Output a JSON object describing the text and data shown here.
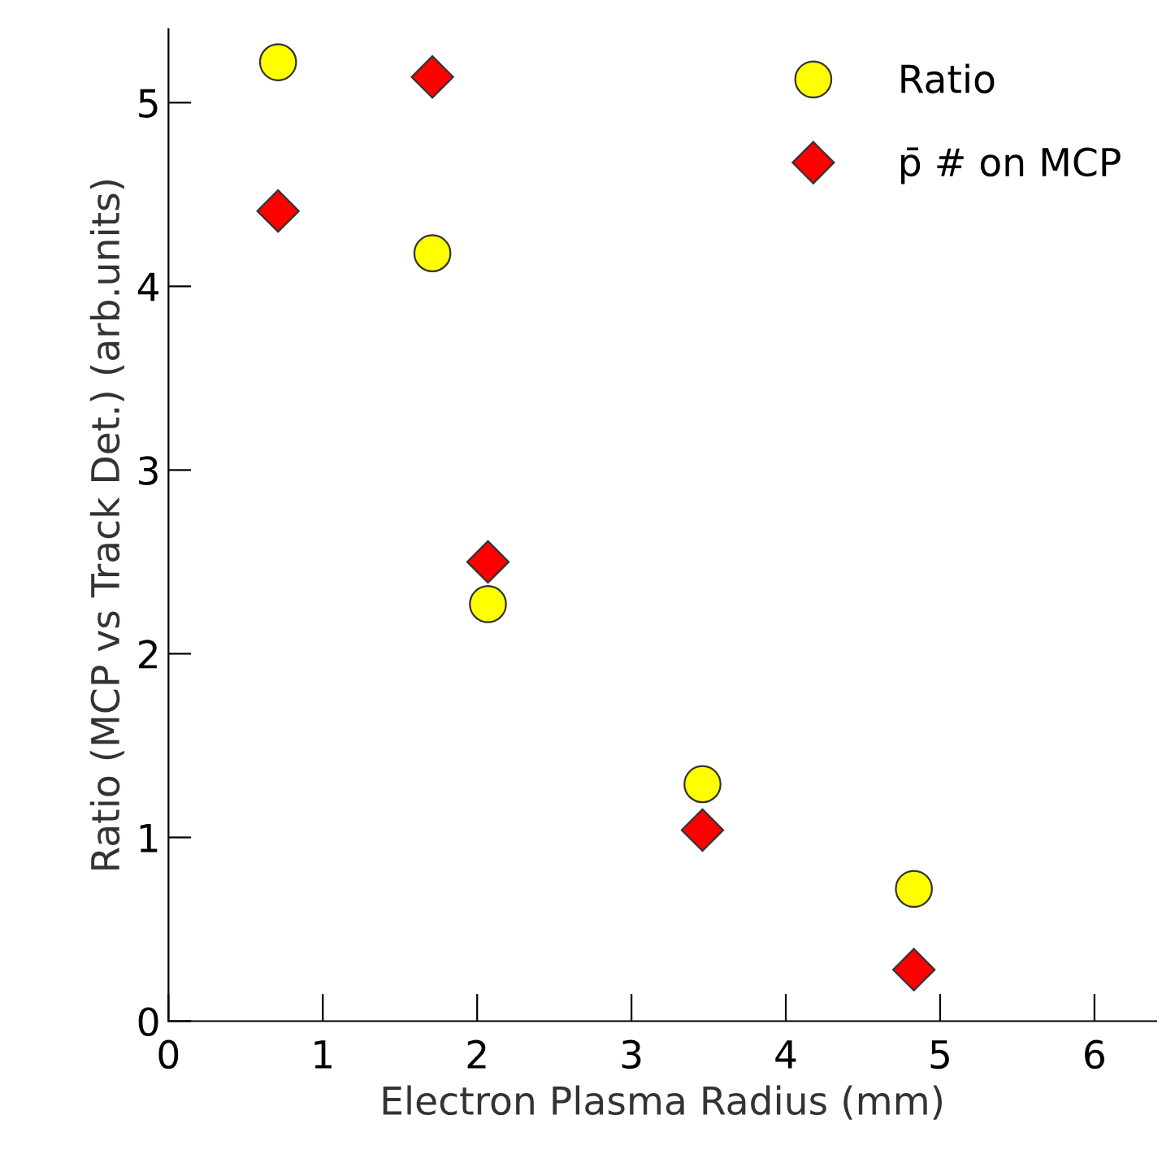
{
  "chart_data": {
    "type": "scatter",
    "xlabel": "Electron Plasma Radius (mm)",
    "ylabel": "Ratio (MCP vs Track Det.) (arb.units)",
    "series": [
      {
        "name": "Ratio",
        "color": "#ffff00",
        "marker": "circle",
        "x": [
          0.71,
          1.71,
          2.07,
          3.46,
          4.83
        ],
        "values": [
          5.22,
          4.18,
          2.27,
          1.29,
          0.72
        ]
      },
      {
        "name": "p̄ # on MCP",
        "color": "#ff0000",
        "marker": "diamond",
        "x": [
          0.71,
          1.71,
          2.07,
          3.46,
          4.83
        ],
        "values": [
          4.41,
          5.14,
          2.5,
          1.04,
          0.28
        ]
      }
    ],
    "xlim": [
      0,
      6.4
    ],
    "ylim": [
      0,
      5.4
    ],
    "xticks": [
      0,
      1,
      2,
      3,
      4,
      5,
      6
    ],
    "yticks": [
      0,
      1,
      2,
      3,
      4,
      5
    ],
    "grid": false,
    "legend": "top right"
  }
}
